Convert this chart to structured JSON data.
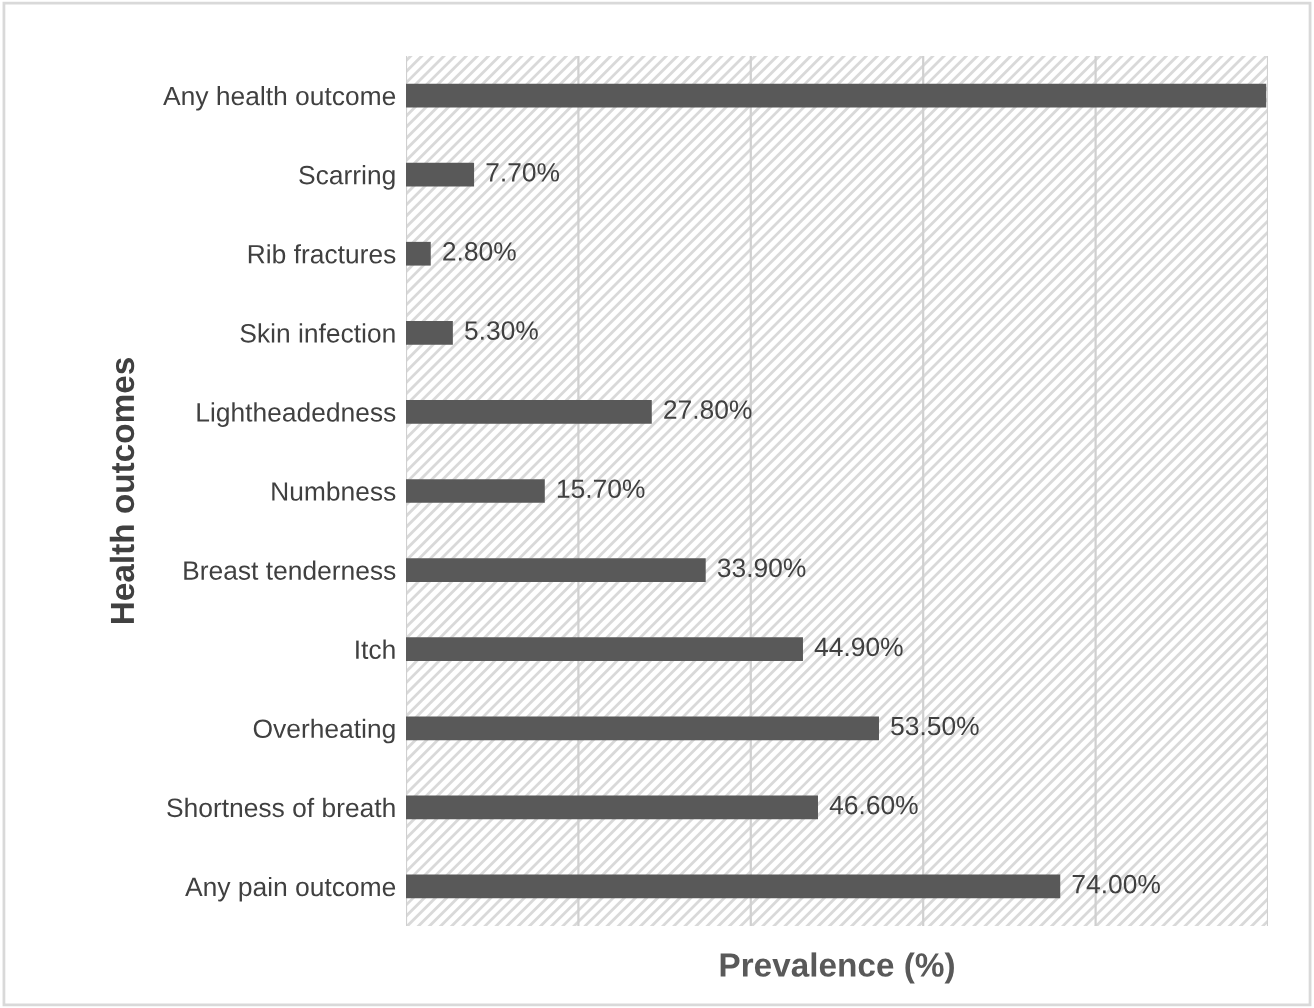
{
  "chart_data": {
    "type": "bar",
    "orientation": "horizontal",
    "xlabel": "Prevalence (%)",
    "ylabel": "Health outcomes",
    "categories": [
      "Any health outcome",
      "Scarring",
      "Rib fractures",
      "Skin infection",
      "Lightheadedness",
      "Numbness",
      "Breast tenderness",
      "Itch",
      "Overheating",
      "Shortness of breath",
      "Any pain outcome"
    ],
    "values": [
      97.3,
      7.7,
      2.8,
      5.3,
      27.8,
      15.7,
      33.9,
      44.9,
      53.5,
      46.6,
      74.0
    ],
    "value_labels": [
      null,
      "7.70%",
      "2.80%",
      "5.30%",
      "27.80%",
      "15.70%",
      "33.90%",
      "44.90%",
      "53.50%",
      "46.60%",
      "74.00%"
    ],
    "color": "#595959",
    "xlim": [
      0,
      97.5
    ],
    "xticks": [
      {
        "value": 0,
        "label": null
      },
      {
        "value": 19.5,
        "label": null
      },
      {
        "value": 39,
        "label": null
      },
      {
        "value": 58.5,
        "label": null
      },
      {
        "value": 78,
        "label": null
      },
      {
        "value": 97.5,
        "label": null
      }
    ],
    "grid": "x",
    "legend": false
  }
}
